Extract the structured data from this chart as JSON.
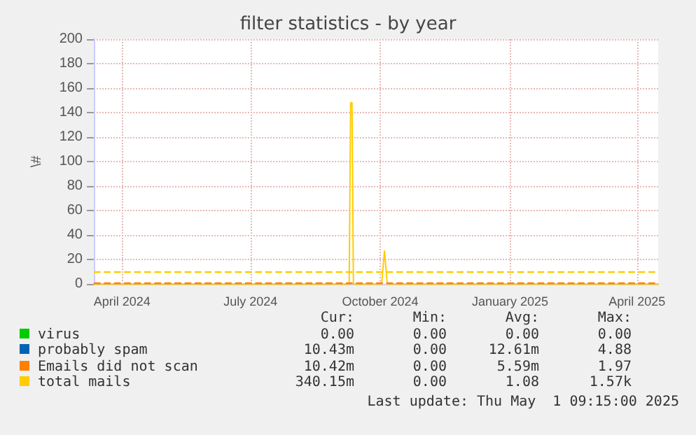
{
  "chart_data": {
    "type": "line",
    "title": "filter statistics - by year",
    "ylabel": "\\#",
    "xlim": [
      "2024-03-27",
      "2025-05-01"
    ],
    "xticks": [
      {
        "value": "2024-04-16",
        "label": "April 2024"
      },
      {
        "value": "2024-07-16",
        "label": "July 2024"
      },
      {
        "value": "2024-10-16",
        "label": "October 2024"
      },
      {
        "value": "2025-01-16",
        "label": "January 2025"
      },
      {
        "value": "2025-04-16",
        "label": "April 2025"
      }
    ],
    "ylim": [
      0,
      200
    ],
    "yticks": [
      0,
      20,
      40,
      60,
      80,
      100,
      120,
      140,
      160,
      180,
      200
    ],
    "grid": true,
    "legend": "bottom",
    "marker": "none",
    "line_style": "solid",
    "series": [
      {
        "name": "virus",
        "color": "#00cc00"
      },
      {
        "name": "probably spam",
        "color": "#0066b3"
      },
      {
        "name": "Emails did not scan",
        "color": "#ff8000"
      },
      {
        "name": "total mails",
        "color": "#ffcc00",
        "x": [
          "2024-03-27",
          "2024-09-24",
          "2024-09-25",
          "2024-09-26",
          "2024-09-27",
          "2024-10-17",
          "2024-10-19",
          "2024-10-21",
          "2025-05-01"
        ],
        "values": [
          0,
          0,
          148,
          148,
          0,
          0,
          27,
          0,
          0
        ]
      }
    ],
    "ref_lines": [
      {
        "axis": "y",
        "value": 10,
        "color": "#ffcc00",
        "line_style": "dashed"
      },
      {
        "axis": "y",
        "value": 1,
        "color": "#ff8000",
        "line_style": "dashed"
      }
    ],
    "annotations": [
      "Cur:",
      "Min:",
      "Avg:",
      "Max:",
      "0.00",
      "0.00",
      "0.00",
      "0.00",
      "10.43m",
      "0.00",
      "12.61m",
      "4.88",
      "10.42m",
      "0.00",
      "5.59m",
      "1.97",
      "340.15m",
      "0.00",
      "1.08",
      "1.57k",
      "Last update: Thu May  1 09:15:00 2025"
    ]
  }
}
